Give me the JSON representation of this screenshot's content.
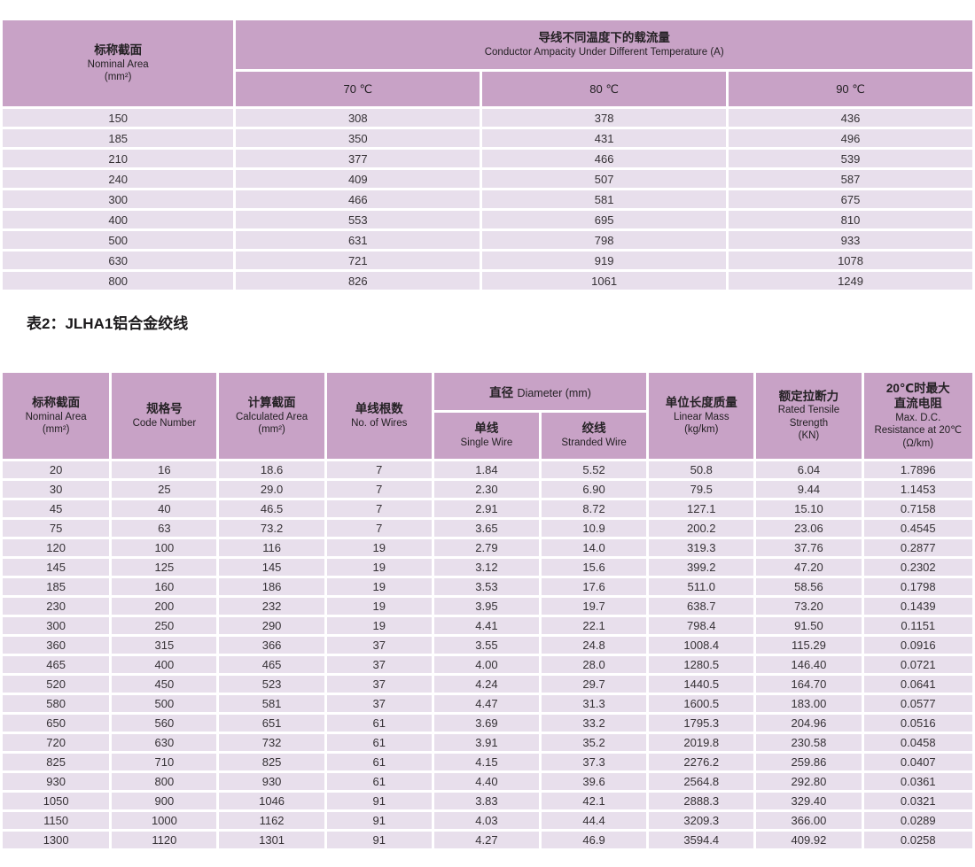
{
  "page": {
    "caption": "表2：JLHA1铝合金绞线"
  },
  "colors": {
    "header_bg": "#c8a2c6",
    "row_bg": "#e8dfec",
    "gap": "#ffffff",
    "text": "#353135"
  },
  "table1": {
    "nominal_area": {
      "zh": "标称截面",
      "en": "Nominal Area",
      "unit": "(mm²)"
    },
    "ampacity": {
      "zh": "导线不同温度下的载流量",
      "en": "Conductor Ampacity Under Different Temperature (A)"
    },
    "temps": [
      "70 ℃",
      "80 ℃",
      "90 ℃"
    ],
    "rows": [
      [
        "150",
        "308",
        "378",
        "436"
      ],
      [
        "185",
        "350",
        "431",
        "496"
      ],
      [
        "210",
        "377",
        "466",
        "539"
      ],
      [
        "240",
        "409",
        "507",
        "587"
      ],
      [
        "300",
        "466",
        "581",
        "675"
      ],
      [
        "400",
        "553",
        "695",
        "810"
      ],
      [
        "500",
        "631",
        "798",
        "933"
      ],
      [
        "630",
        "721",
        "919",
        "1078"
      ],
      [
        "800",
        "826",
        "1061",
        "1249"
      ]
    ]
  },
  "table2": {
    "nominal_area": {
      "zh": "标称截面",
      "en": "Nominal Area",
      "unit": "(mm²)"
    },
    "code_number": {
      "zh": "规格号",
      "en": "Code Number"
    },
    "calculated_area": {
      "zh": "计算截面",
      "en": "Calculated Area",
      "unit": "(mm²)"
    },
    "no_of_wires": {
      "zh": "单线根数",
      "en": "No. of Wires"
    },
    "diameter": {
      "zh": "直径",
      "en": "Diameter (mm)"
    },
    "single_wire": {
      "zh": "单线",
      "en": "Single Wire"
    },
    "stranded_wire": {
      "zh": "绞线",
      "en": "Stranded Wire"
    },
    "linear_mass": {
      "zh": "单位长度质量",
      "en": "Linear Mass",
      "unit": "(kg/km)"
    },
    "tensile": {
      "zh": "额定拉断力",
      "en": "Rated Tensile",
      "en2": "Strength",
      "unit": "(KN)"
    },
    "resistance": {
      "zh": "20℃时最大",
      "zh2": "直流电阻",
      "en": "Max. D.C.",
      "en2": "Resistance at 20℃",
      "unit": "(Ω/km)"
    },
    "rows": [
      [
        "20",
        "16",
        "18.6",
        "7",
        "1.84",
        "5.52",
        "50.8",
        "6.04",
        "1.7896"
      ],
      [
        "30",
        "25",
        "29.0",
        "7",
        "2.30",
        "6.90",
        "79.5",
        "9.44",
        "1.1453"
      ],
      [
        "45",
        "40",
        "46.5",
        "7",
        "2.91",
        "8.72",
        "127.1",
        "15.10",
        "0.7158"
      ],
      [
        "75",
        "63",
        "73.2",
        "7",
        "3.65",
        "10.9",
        "200.2",
        "23.06",
        "0.4545"
      ],
      [
        "120",
        "100",
        "116",
        "19",
        "2.79",
        "14.0",
        "319.3",
        "37.76",
        "0.2877"
      ],
      [
        "145",
        "125",
        "145",
        "19",
        "3.12",
        "15.6",
        "399.2",
        "47.20",
        "0.2302"
      ],
      [
        "185",
        "160",
        "186",
        "19",
        "3.53",
        "17.6",
        "511.0",
        "58.56",
        "0.1798"
      ],
      [
        "230",
        "200",
        "232",
        "19",
        "3.95",
        "19.7",
        "638.7",
        "73.20",
        "0.1439"
      ],
      [
        "300",
        "250",
        "290",
        "19",
        "4.41",
        "22.1",
        "798.4",
        "91.50",
        "0.1151"
      ],
      [
        "360",
        "315",
        "366",
        "37",
        "3.55",
        "24.8",
        "1008.4",
        "115.29",
        "0.0916"
      ],
      [
        "465",
        "400",
        "465",
        "37",
        "4.00",
        "28.0",
        "1280.5",
        "146.40",
        "0.0721"
      ],
      [
        "520",
        "450",
        "523",
        "37",
        "4.24",
        "29.7",
        "1440.5",
        "164.70",
        "0.0641"
      ],
      [
        "580",
        "500",
        "581",
        "37",
        "4.47",
        "31.3",
        "1600.5",
        "183.00",
        "0.0577"
      ],
      [
        "650",
        "560",
        "651",
        "61",
        "3.69",
        "33.2",
        "1795.3",
        "204.96",
        "0.0516"
      ],
      [
        "720",
        "630",
        "732",
        "61",
        "3.91",
        "35.2",
        "2019.8",
        "230.58",
        "0.0458"
      ],
      [
        "825",
        "710",
        "825",
        "61",
        "4.15",
        "37.3",
        "2276.2",
        "259.86",
        "0.0407"
      ],
      [
        "930",
        "800",
        "930",
        "61",
        "4.40",
        "39.6",
        "2564.8",
        "292.80",
        "0.0361"
      ],
      [
        "1050",
        "900",
        "1046",
        "91",
        "3.83",
        "42.1",
        "2888.3",
        "329.40",
        "0.0321"
      ],
      [
        "1150",
        "1000",
        "1162",
        "91",
        "4.03",
        "44.4",
        "3209.3",
        "366.00",
        "0.0289"
      ],
      [
        "1300",
        "1120",
        "1301",
        "91",
        "4.27",
        "46.9",
        "3594.4",
        "409.92",
        "0.0258"
      ]
    ]
  }
}
